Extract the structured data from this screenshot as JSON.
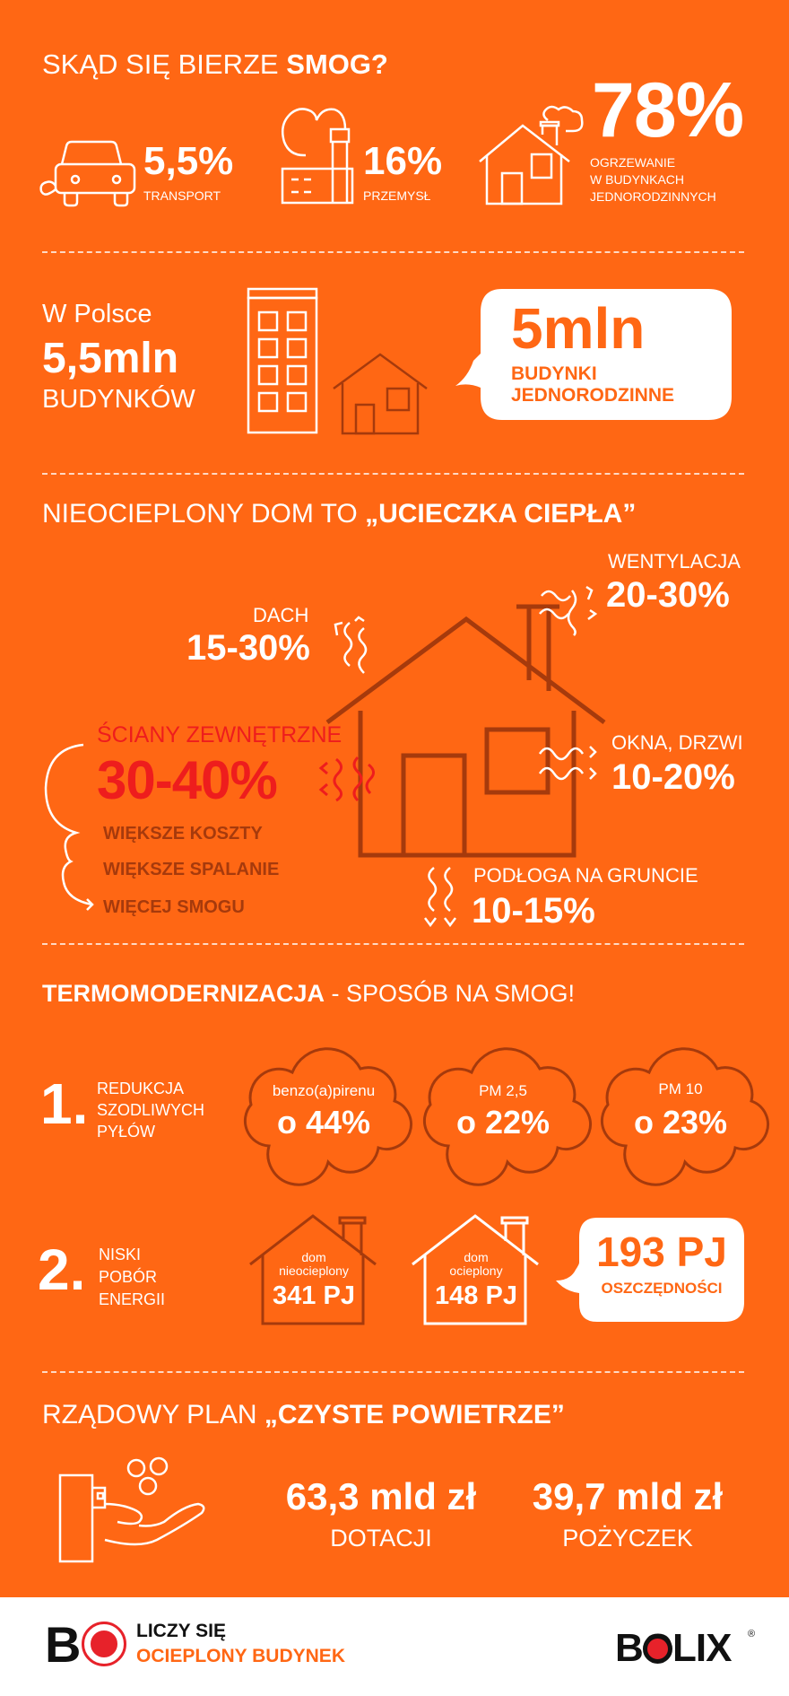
{
  "colors": {
    "background": "#ff6714",
    "brown": "#a63a0c",
    "red": "#ee1d1d",
    "white": "#ffffff"
  },
  "s1": {
    "title_light": "SKĄD SIĘ BIERZE ",
    "title_bold": "SMOG?",
    "transport": {
      "value": "5,5%",
      "label": "TRANSPORT",
      "icon": "car-icon"
    },
    "industry": {
      "value": "16%",
      "label": "PRZEMYSŁ",
      "icon": "factory-icon"
    },
    "heating": {
      "value": "78%",
      "label_lines": [
        "OGRZEWANIE",
        "W BUDYNKACH",
        "JEDNORODZINNYCH"
      ],
      "icon": "house-smoke-icon"
    }
  },
  "s2": {
    "line1": "W Polsce",
    "line2": "5,5mln",
    "line3": "BUDYNKÓW",
    "bubble_value": "5mln",
    "bubble_lines": [
      "BUDYNKI",
      "JEDNORODZINNE"
    ]
  },
  "s3": {
    "title_light": "NIEOCIEPLONY DOM TO ",
    "title_bold": "„UCIECZKA CIEPŁA”",
    "ventilation": {
      "label": "WENTYLACJA",
      "value": "20-30%"
    },
    "roof": {
      "label": "DACH",
      "value": "15-30%"
    },
    "walls": {
      "label": "ŚCIANY ZEWNĘTRZNE",
      "value": "30-40%"
    },
    "windows": {
      "label": "OKNA, DRZWI",
      "value": "10-20%"
    },
    "floor": {
      "label": "PODŁOGA NA GRUNCIE",
      "value": "10-15%"
    },
    "effects": [
      "WIĘKSZE KOSZTY",
      "WIĘKSZE SPALANIE",
      "WIĘCEJ SMOGU"
    ]
  },
  "s4": {
    "title_bold": "TERMOMODERNIZACJA",
    "title_light": " - SPOSÓB NA SMOG!",
    "p1": {
      "num": "1.",
      "lines": [
        "REDUKCJA",
        "SZODLIWYCH",
        "PYŁÓW"
      ],
      "clouds": [
        {
          "label": "benzo(a)pirenu",
          "value": "o 44%"
        },
        {
          "label": "PM 2,5",
          "value": "o 22%"
        },
        {
          "label": "PM 10",
          "value": "o 23%"
        }
      ]
    },
    "p2": {
      "num": "2.",
      "lines": [
        "NISKI",
        "POBÓR",
        "ENERGII"
      ],
      "houses": [
        {
          "l1": "dom",
          "l2": "nieocieplony",
          "value": "341 PJ"
        },
        {
          "l1": "dom",
          "l2": "ocieplony",
          "value": "148 PJ"
        }
      ],
      "bubble_value": "193 PJ",
      "bubble_label": "OSZCZĘDNOŚCI"
    }
  },
  "s5": {
    "title_light": "RZĄDOWY PLAN ",
    "title_bold": "„CZYSTE POWIETRZE”",
    "grants": {
      "value": "63,3 mld zł",
      "label": "DOTACJI"
    },
    "loans": {
      "value": "39,7 mld zł",
      "label": "POŻYCZEK"
    }
  },
  "footer": {
    "logo_letters": "BO",
    "line1": "LICZY SIĘ",
    "line2": "OCIEPLONY BUDYNEK",
    "brand": "BOLIX",
    "brand_pre": "B",
    "brand_post": "LIX",
    "registered": "®"
  }
}
